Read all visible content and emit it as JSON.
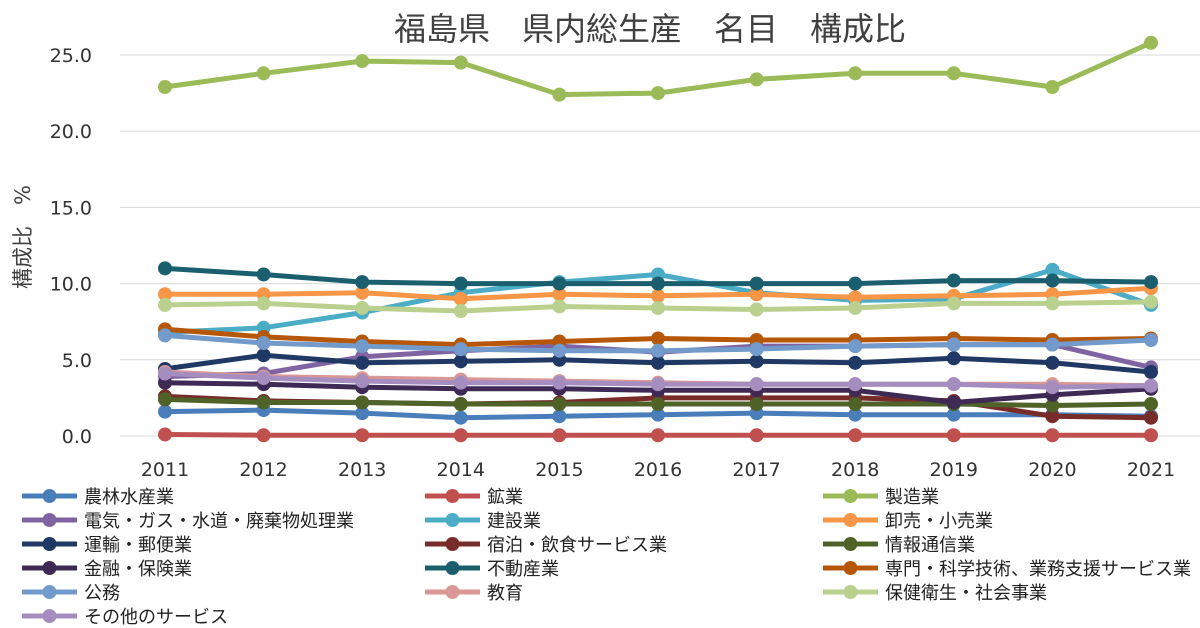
{
  "chart_data": {
    "type": "line",
    "title": "福島県　県内総生産　名目　構成比",
    "xlabel": "",
    "ylabel": "構成比　%",
    "ylim": [
      0,
      27
    ],
    "yticks": [
      "0.0",
      "5.0",
      "10.0",
      "15.0",
      "20.0",
      "25.0"
    ],
    "ytick_values": [
      0,
      5,
      10,
      15,
      20,
      25
    ],
    "categories": [
      "2011",
      "2012",
      "2013",
      "2014",
      "2015",
      "2016",
      "2017",
      "2018",
      "2019",
      "2020",
      "2021"
    ],
    "grid": "horizontal",
    "legend_position": "bottom",
    "series": [
      {
        "name": "農林水産業",
        "color": "#4a7ebb",
        "values": [
          1.6,
          1.7,
          1.5,
          1.2,
          1.3,
          1.4,
          1.5,
          1.4,
          1.4,
          1.4,
          1.3
        ]
      },
      {
        "name": "鉱業",
        "color": "#c0504d",
        "values": [
          0.1,
          0.05,
          0.05,
          0.05,
          0.05,
          0.05,
          0.05,
          0.05,
          0.05,
          0.05,
          0.05
        ]
      },
      {
        "name": "製造業",
        "color": "#9bbb59",
        "values": [
          22.9,
          23.8,
          24.6,
          24.5,
          22.4,
          22.5,
          23.4,
          23.8,
          23.8,
          22.9,
          25.8
        ]
      },
      {
        "name": "電気・ガス・水道・廃棄物処理業",
        "color": "#8064a2",
        "values": [
          3.9,
          4.1,
          5.2,
          5.6,
          5.9,
          5.5,
          5.9,
          5.9,
          6.0,
          6.0,
          4.5
        ]
      },
      {
        "name": "建設業",
        "color": "#4bacc6",
        "values": [
          6.8,
          7.1,
          8.1,
          9.4,
          10.1,
          10.6,
          9.4,
          8.9,
          9.0,
          10.9,
          8.6
        ]
      },
      {
        "name": "卸売・小売業",
        "color": "#f79646",
        "values": [
          9.3,
          9.3,
          9.4,
          9.0,
          9.3,
          9.2,
          9.3,
          9.1,
          9.2,
          9.3,
          9.7
        ]
      },
      {
        "name": "運輸・郵便業",
        "color": "#1f3864",
        "values": [
          4.4,
          5.3,
          4.8,
          4.9,
          5.0,
          4.8,
          4.9,
          4.8,
          5.1,
          4.8,
          4.2
        ]
      },
      {
        "name": "宿泊・飲食サービス業",
        "color": "#772c2a",
        "values": [
          2.6,
          2.3,
          2.2,
          2.1,
          2.2,
          2.5,
          2.5,
          2.5,
          2.3,
          1.3,
          1.2
        ]
      },
      {
        "name": "情報通信業",
        "color": "#4f6228",
        "values": [
          2.4,
          2.2,
          2.2,
          2.1,
          2.1,
          2.1,
          2.1,
          2.1,
          2.1,
          2.0,
          2.1
        ]
      },
      {
        "name": "金融・保険業",
        "color": "#3f2a56",
        "values": [
          3.5,
          3.4,
          3.2,
          3.1,
          3.1,
          3.0,
          3.0,
          3.0,
          2.2,
          2.7,
          3.1
        ]
      },
      {
        "name": "不動産業",
        "color": "#1b5f6e",
        "values": [
          11.0,
          10.6,
          10.1,
          10.0,
          10.0,
          10.0,
          10.0,
          10.0,
          10.2,
          10.2,
          10.1
        ]
      },
      {
        "name": "専門・科学技術、業務支援サービス業",
        "color": "#b65708",
        "values": [
          7.0,
          6.5,
          6.2,
          6.0,
          6.2,
          6.4,
          6.3,
          6.3,
          6.4,
          6.3,
          6.4
        ]
      },
      {
        "name": "公務",
        "color": "#729aca",
        "values": [
          6.6,
          6.1,
          5.9,
          5.7,
          5.6,
          5.6,
          5.7,
          5.9,
          6.0,
          6.0,
          6.3
        ]
      },
      {
        "name": "教育",
        "color": "#d99795",
        "values": [
          4.2,
          3.9,
          3.8,
          3.7,
          3.6,
          3.5,
          3.4,
          3.4,
          3.4,
          3.4,
          3.3
        ]
      },
      {
        "name": "保健衛生・社会事業",
        "color": "#b9d08e",
        "values": [
          8.6,
          8.7,
          8.4,
          8.2,
          8.5,
          8.4,
          8.3,
          8.4,
          8.7,
          8.7,
          8.8
        ]
      },
      {
        "name": "その他のサービス",
        "color": "#a58dc0",
        "values": [
          4.1,
          3.8,
          3.6,
          3.5,
          3.5,
          3.4,
          3.4,
          3.4,
          3.4,
          3.2,
          3.3
        ]
      }
    ]
  }
}
